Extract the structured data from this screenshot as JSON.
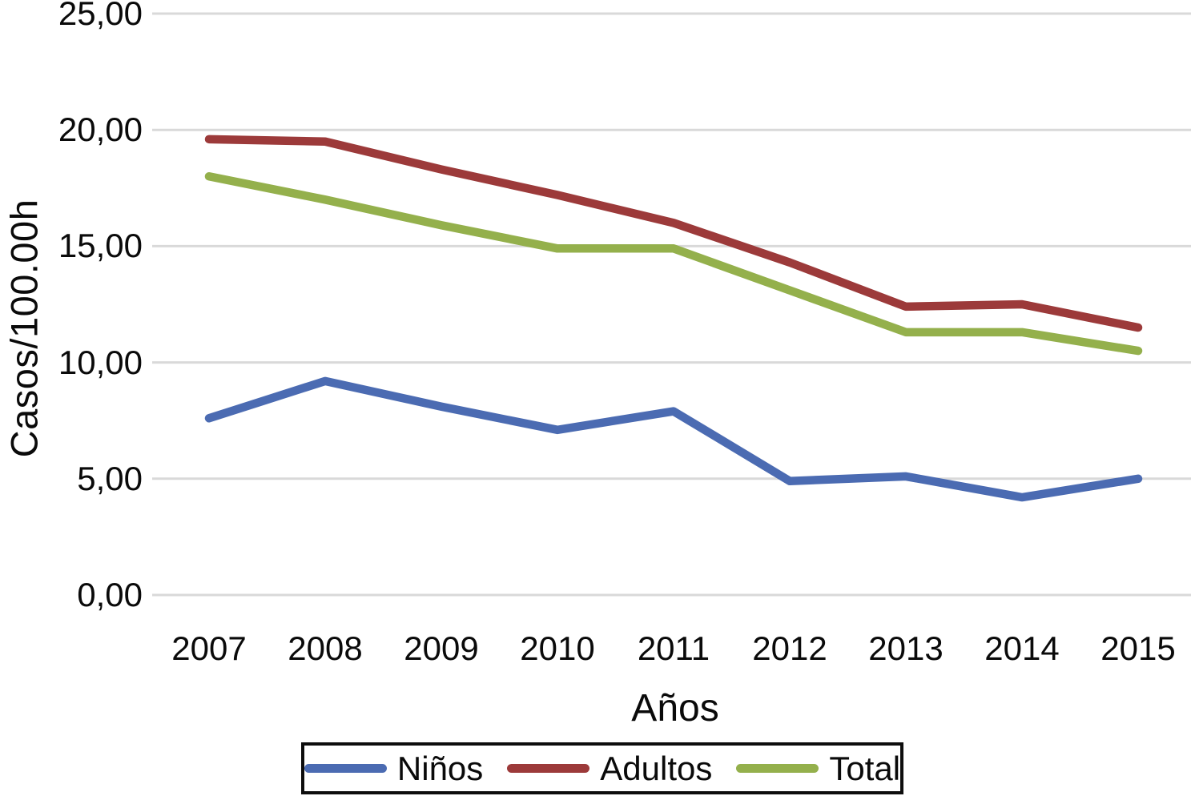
{
  "figure": {
    "background": "#ffffff",
    "gridline_color": "#d9d9d9",
    "text_color": "#0a0a0a"
  },
  "chart_data": {
    "type": "line",
    "title": "",
    "xlabel": "Años",
    "ylabel": "Casos/100.00h",
    "x": [
      "2007",
      "2008",
      "2009",
      "2010",
      "2011",
      "2012",
      "2013",
      "2014",
      "2015"
    ],
    "yticks": [
      "0,00",
      "5,00",
      "10,00",
      "15,00",
      "20,00",
      "25,00"
    ],
    "ylim": [
      0,
      25
    ],
    "grid": true,
    "legend_position": "bottom",
    "series": [
      {
        "name": "Niños",
        "color": "#4b6bb2",
        "values": [
          7.6,
          9.2,
          8.1,
          7.1,
          7.9,
          4.9,
          5.1,
          4.2,
          5.0
        ]
      },
      {
        "name": "Adultos",
        "color": "#9c3a3a",
        "values": [
          19.6,
          19.5,
          18.3,
          17.2,
          16.0,
          14.3,
          12.4,
          12.5,
          11.5
        ]
      },
      {
        "name": "Total",
        "color": "#94b04c",
        "values": [
          18.0,
          17.0,
          15.9,
          14.9,
          14.9,
          13.1,
          11.3,
          11.3,
          10.5
        ]
      }
    ]
  }
}
